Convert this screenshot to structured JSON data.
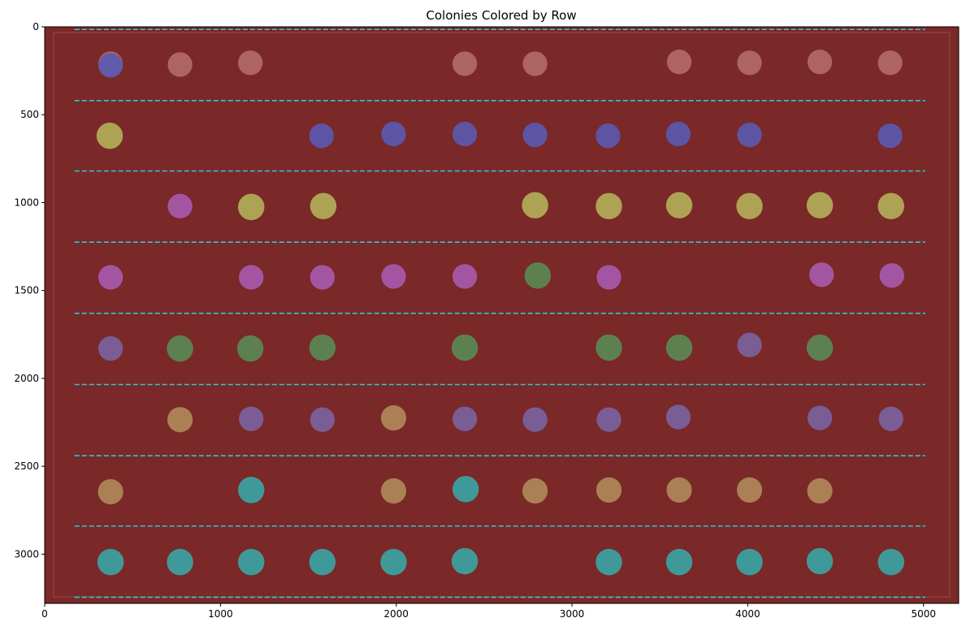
{
  "chart_data": {
    "type": "scatter",
    "title": "Colonies Colored by Row",
    "xlabel": "",
    "ylabel": "",
    "xlim": [
      0,
      5200
    ],
    "ylim": [
      3280,
      0
    ],
    "x_ticks": [
      0,
      1000,
      2000,
      3000,
      4000,
      5000
    ],
    "x_tick_labels": [
      "0",
      "1000",
      "2000",
      "3000",
      "4000",
      "5000"
    ],
    "y_ticks": [
      0,
      500,
      1000,
      1500,
      2000,
      2500,
      3000
    ],
    "y_tick_labels": [
      "0",
      "500",
      "1000",
      "1500",
      "2000",
      "2500",
      "3000"
    ],
    "grid": false,
    "legend": "none",
    "background_color": "#7a2828",
    "row_boundary_color": "#2ec8d0",
    "row_boundaries": {
      "x_start": 170,
      "x_end": 5010,
      "y": [
        15,
        420,
        820,
        1225,
        1630,
        2035,
        2440,
        2840,
        3245
      ]
    },
    "series": [
      {
        "row": 1,
        "color": "#b56a6a",
        "radius": 70,
        "x": [
          375,
          770,
          1170,
          2390,
          2790,
          3610,
          4010,
          4410,
          4810
        ],
        "y": [
          210,
          215,
          205,
          210,
          210,
          200,
          205,
          200,
          205
        ]
      },
      {
        "row": 2,
        "color": "#5a5ab0",
        "radius": 70,
        "x": [
          375,
          1575,
          1985,
          2390,
          2790,
          3205,
          3605,
          4010,
          4810
        ],
        "y": [
          220,
          620,
          610,
          610,
          615,
          620,
          610,
          615,
          620
        ]
      },
      {
        "row": 3,
        "color": "#b4b05a",
        "radius": 75,
        "x": [
          370,
          1175,
          1585,
          2790,
          3210,
          3610,
          4010,
          4410,
          4815
        ],
        "y": [
          620,
          1025,
          1020,
          1015,
          1020,
          1015,
          1020,
          1015,
          1020
        ]
      },
      {
        "row": 4,
        "color": "#a85aae",
        "radius": 70,
        "x": [
          770,
          375,
          1175,
          1580,
          1985,
          2390,
          3210,
          4420,
          4820
        ],
        "y": [
          1020,
          1425,
          1425,
          1425,
          1420,
          1420,
          1425,
          1410,
          1415
        ]
      },
      {
        "row": 5,
        "color": "#5a8a55",
        "radius": 75,
        "x": [
          2805,
          770,
          1170,
          1580,
          2390,
          3210,
          3610,
          4410
        ],
        "y": [
          1415,
          1830,
          1830,
          1825,
          1825,
          1825,
          1825,
          1825
        ]
      },
      {
        "row": 6,
        "color": "#7a63a0",
        "radius": 70,
        "x": [
          375,
          4010,
          1175,
          1580,
          2390,
          2790,
          3210,
          3605,
          4410,
          4815
        ],
        "y": [
          1830,
          1810,
          2230,
          2235,
          2230,
          2235,
          2235,
          2220,
          2225,
          2230
        ]
      },
      {
        "row": 7,
        "color": "#b08a5a",
        "radius": 72,
        "x": [
          770,
          1985,
          375,
          1985,
          2790,
          3210,
          3610,
          4010,
          4410
        ],
        "y": [
          2235,
          2225,
          2645,
          2640,
          2640,
          2635,
          2635,
          2635,
          2640
        ]
      },
      {
        "row": 8,
        "color": "#3aa5a5",
        "radius": 75,
        "x": [
          1175,
          2395,
          375,
          770,
          1175,
          1580,
          1985,
          2390,
          3210,
          3610,
          4010,
          4410,
          4815
        ],
        "y": [
          2635,
          2630,
          3045,
          3045,
          3045,
          3045,
          3045,
          3040,
          3045,
          3045,
          3045,
          3040,
          3045
        ]
      }
    ]
  }
}
